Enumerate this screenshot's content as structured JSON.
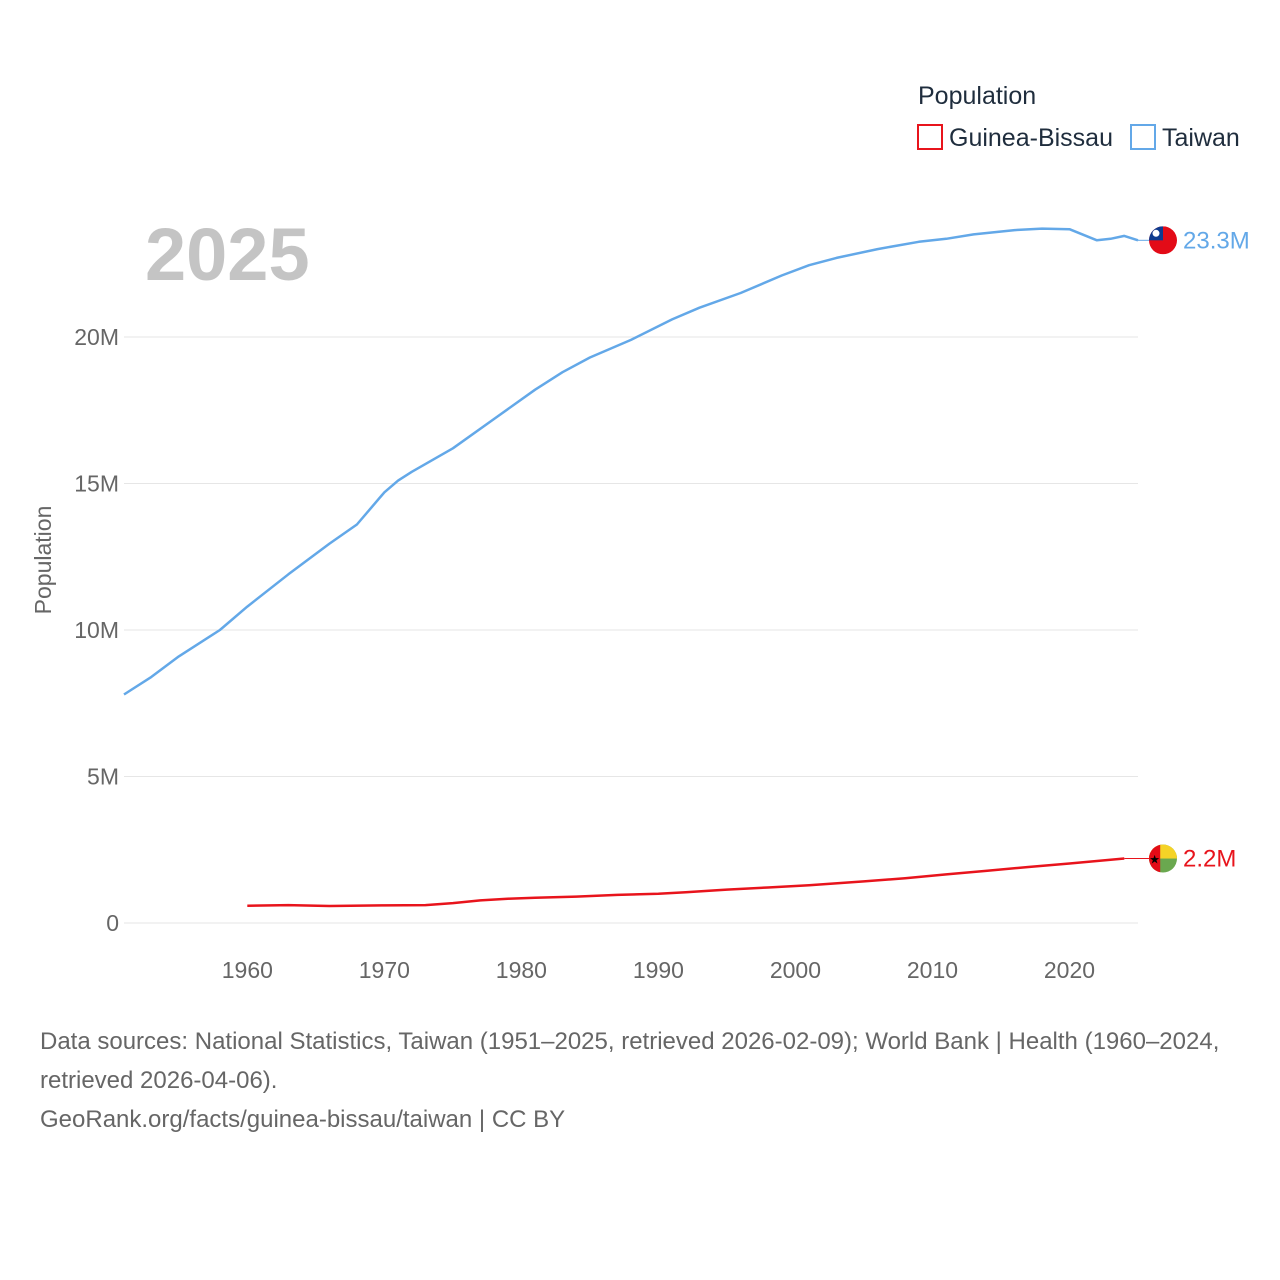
{
  "chart_data": {
    "type": "line",
    "year_label": "2025",
    "ylabel": "Population",
    "xlabel": "",
    "xlim": [
      1951,
      2025
    ],
    "ylim": [
      0,
      24000000
    ],
    "x_ticks": [
      1960,
      1970,
      1980,
      1990,
      2000,
      2010,
      2020
    ],
    "y_ticks": [
      {
        "value": 0,
        "label": "0"
      },
      {
        "value": 5000000,
        "label": "5M"
      },
      {
        "value": 10000000,
        "label": "10M"
      },
      {
        "value": 15000000,
        "label": "15M"
      },
      {
        "value": 20000000,
        "label": "20M"
      }
    ],
    "legend": {
      "title": "Population",
      "position": "top-right"
    },
    "series": [
      {
        "name": "Guinea-Bissau",
        "color": "#e8141c",
        "end_label": "2.2M",
        "flag": "guinea-bissau-flag",
        "x": [
          1960,
          1963,
          1966,
          1970,
          1973,
          1975,
          1977,
          1979,
          1981,
          1984,
          1987,
          1990,
          1992,
          1995,
          1998,
          2001,
          2005,
          2008,
          2011,
          2014,
          2017,
          2020,
          2024
        ],
        "values": [
          590000,
          610000,
          580000,
          600000,
          610000,
          680000,
          770000,
          830000,
          860000,
          900000,
          960000,
          1000000,
          1050000,
          1140000,
          1210000,
          1290000,
          1420000,
          1530000,
          1660000,
          1780000,
          1910000,
          2030000,
          2200000
        ]
      },
      {
        "name": "Taiwan",
        "color": "#63a8e8",
        "end_label": "23.3M",
        "flag": "taiwan-flag",
        "x": [
          1951,
          1953,
          1955,
          1958,
          1960,
          1963,
          1966,
          1968,
          1970,
          1971,
          1972,
          1975,
          1978,
          1981,
          1983,
          1985,
          1988,
          1991,
          1993,
          1996,
          1999,
          2001,
          2003,
          2006,
          2009,
          2011,
          2013,
          2016,
          2018,
          2020,
          2022,
          2023,
          2024,
          2025
        ],
        "values": [
          7800000,
          8400000,
          9100000,
          10000000,
          10800000,
          11900000,
          12950000,
          13600000,
          14700000,
          15100000,
          15400000,
          16200000,
          17200000,
          18200000,
          18800000,
          19300000,
          19900000,
          20600000,
          21000000,
          21500000,
          22100000,
          22450000,
          22700000,
          23000000,
          23250000,
          23350000,
          23500000,
          23650000,
          23700000,
          23680000,
          23300000,
          23350000,
          23450000,
          23300000
        ]
      }
    ]
  },
  "footer": {
    "sources": "Data sources: National Statistics, Taiwan (1951–2025, retrieved 2026-02-09); World Bank | Health (1960–2024, retrieved 2026-04-06).",
    "credit": "GeoRank.org/facts/guinea-bissau/taiwan | CC BY"
  }
}
